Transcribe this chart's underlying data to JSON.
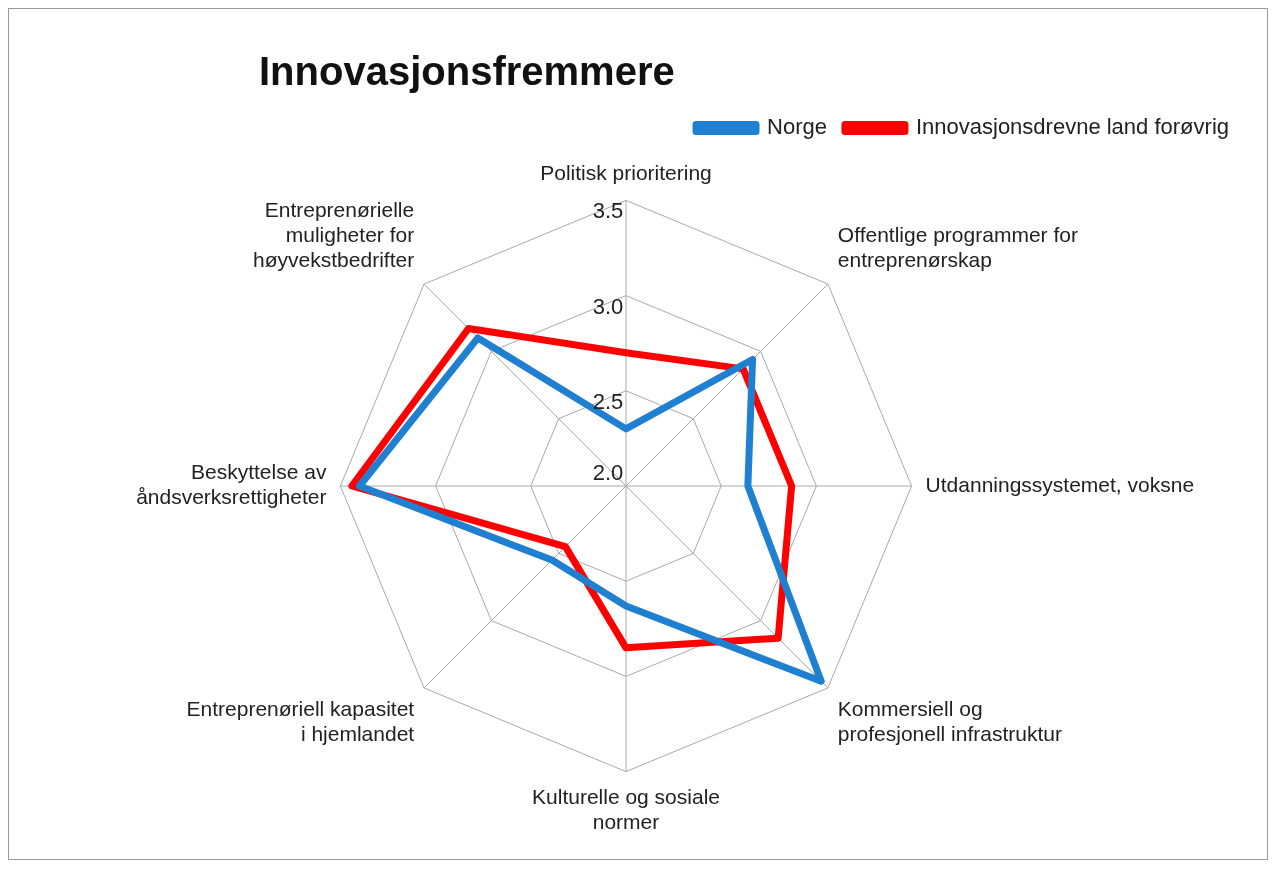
{
  "chart_data": {
    "type": "radar",
    "title": "Innovasjonsfremmere",
    "categories": [
      "Politisk prioritering",
      "Offentlige programmer for entreprenørskap",
      "Utdanningssystemet, voksne",
      "Kommersiell og profesjonell infrastruktur",
      "Kulturelle og sosiale normer",
      "Entreprenøriell kapasitet i hjemlandet",
      "Beskyttelse av åndsverksrettigheter",
      "Entreprenørielle muligheter for høyvekstbedrifter"
    ],
    "series": [
      {
        "name": "Norge",
        "color": "#1f7fd0",
        "values": [
          2.3,
          2.94,
          2.64,
          3.45,
          2.63,
          2.55,
          3.4,
          3.1
        ]
      },
      {
        "name": "Innovasjonsdrevne land forøvrig",
        "color": "#ff0000",
        "values": [
          2.7,
          2.87,
          2.87,
          3.13,
          2.85,
          2.45,
          3.44,
          3.17
        ]
      }
    ],
    "ylim": [
      2.0,
      3.5
    ],
    "yticks": [
      {
        "value": 2.0,
        "label": "2.0"
      },
      {
        "value": 2.5,
        "label": "2.5"
      },
      {
        "value": 3.0,
        "label": "3.0"
      },
      {
        "value": 3.5,
        "label": "3.5"
      }
    ],
    "grid": true,
    "legend": "top right",
    "marker": "none",
    "line_style": "solid"
  }
}
